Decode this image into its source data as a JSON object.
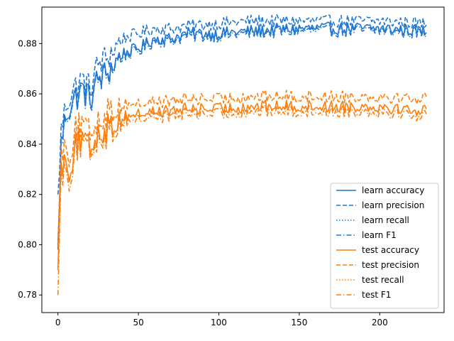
{
  "chart_data": {
    "type": "line",
    "title": "",
    "xlabel": "",
    "ylabel": "",
    "xlim": [
      -10,
      240
    ],
    "ylim": [
      0.773,
      0.8945
    ],
    "xticks": [
      0,
      50,
      100,
      150,
      200
    ],
    "yticks": [
      0.78,
      0.8,
      0.82,
      0.84,
      0.86,
      0.88
    ],
    "ytick_labels": [
      "0.78",
      "0.80",
      "0.82",
      "0.84",
      "0.86",
      "0.88"
    ],
    "xtick_labels": [
      "0",
      "50",
      "100",
      "150",
      "200"
    ],
    "grid": false,
    "legend_position": "lower-right",
    "colors": {
      "learn": "#1f77d4",
      "test": "#ff7f0e"
    },
    "series": [
      {
        "name": "learn accuracy",
        "group": "learn",
        "style": "solid",
        "points": [
          [
            0,
            0.8
          ],
          [
            2,
            0.84
          ],
          [
            5,
            0.852
          ],
          [
            10,
            0.858
          ],
          [
            15,
            0.862
          ],
          [
            20,
            0.858
          ],
          [
            25,
            0.866
          ],
          [
            30,
            0.868
          ],
          [
            35,
            0.872
          ],
          [
            40,
            0.876
          ],
          [
            50,
            0.878
          ],
          [
            60,
            0.882
          ],
          [
            70,
            0.882
          ],
          [
            80,
            0.884
          ],
          [
            100,
            0.884
          ],
          [
            120,
            0.885
          ],
          [
            150,
            0.886
          ],
          [
            180,
            0.886
          ],
          [
            200,
            0.886
          ],
          [
            230,
            0.885
          ]
        ]
      },
      {
        "name": "learn precision",
        "group": "learn",
        "style": "dashed",
        "points": [
          [
            0,
            0.82
          ],
          [
            2,
            0.845
          ],
          [
            5,
            0.856
          ],
          [
            10,
            0.862
          ],
          [
            15,
            0.866
          ],
          [
            20,
            0.862
          ],
          [
            25,
            0.872
          ],
          [
            30,
            0.874
          ],
          [
            35,
            0.878
          ],
          [
            40,
            0.882
          ],
          [
            50,
            0.884
          ],
          [
            60,
            0.886
          ],
          [
            70,
            0.886
          ],
          [
            80,
            0.887
          ],
          [
            100,
            0.888
          ],
          [
            120,
            0.889
          ],
          [
            150,
            0.889
          ],
          [
            180,
            0.889
          ],
          [
            200,
            0.889
          ],
          [
            230,
            0.888
          ]
        ]
      },
      {
        "name": "learn recall",
        "group": "learn",
        "style": "dotted",
        "points": [
          [
            0,
            0.8
          ],
          [
            2,
            0.84
          ],
          [
            5,
            0.852
          ],
          [
            10,
            0.858
          ],
          [
            15,
            0.862
          ],
          [
            20,
            0.858
          ],
          [
            25,
            0.866
          ],
          [
            30,
            0.868
          ],
          [
            35,
            0.872
          ],
          [
            40,
            0.876
          ],
          [
            50,
            0.878
          ],
          [
            60,
            0.882
          ],
          [
            70,
            0.882
          ],
          [
            80,
            0.884
          ],
          [
            100,
            0.884
          ],
          [
            120,
            0.885
          ],
          [
            150,
            0.886
          ],
          [
            180,
            0.886
          ],
          [
            200,
            0.886
          ],
          [
            230,
            0.885
          ]
        ]
      },
      {
        "name": "learn F1",
        "group": "learn",
        "style": "dashdot",
        "points": [
          [
            0,
            0.798
          ],
          [
            2,
            0.838
          ],
          [
            5,
            0.851
          ],
          [
            10,
            0.857
          ],
          [
            15,
            0.861
          ],
          [
            20,
            0.857
          ],
          [
            25,
            0.865
          ],
          [
            30,
            0.867
          ],
          [
            35,
            0.871
          ],
          [
            40,
            0.875
          ],
          [
            50,
            0.877
          ],
          [
            60,
            0.881
          ],
          [
            70,
            0.881
          ],
          [
            80,
            0.883
          ],
          [
            100,
            0.883
          ],
          [
            120,
            0.884
          ],
          [
            150,
            0.885
          ],
          [
            180,
            0.885
          ],
          [
            200,
            0.885
          ],
          [
            230,
            0.884
          ]
        ]
      },
      {
        "name": "test accuracy",
        "group": "test",
        "style": "solid",
        "points": [
          [
            0,
            0.79
          ],
          [
            2,
            0.83
          ],
          [
            5,
            0.836
          ],
          [
            8,
            0.828
          ],
          [
            10,
            0.84
          ],
          [
            15,
            0.841
          ],
          [
            20,
            0.838
          ],
          [
            25,
            0.845
          ],
          [
            30,
            0.846
          ],
          [
            35,
            0.848
          ],
          [
            40,
            0.851
          ],
          [
            50,
            0.852
          ],
          [
            60,
            0.853
          ],
          [
            70,
            0.853
          ],
          [
            80,
            0.854
          ],
          [
            100,
            0.854
          ],
          [
            120,
            0.855
          ],
          [
            150,
            0.855
          ],
          [
            180,
            0.855
          ],
          [
            200,
            0.855
          ],
          [
            230,
            0.853
          ]
        ]
      },
      {
        "name": "test precision",
        "group": "test",
        "style": "dashed",
        "points": [
          [
            0,
            0.8
          ],
          [
            2,
            0.836
          ],
          [
            5,
            0.842
          ],
          [
            8,
            0.834
          ],
          [
            10,
            0.846
          ],
          [
            15,
            0.847
          ],
          [
            20,
            0.844
          ],
          [
            25,
            0.85
          ],
          [
            30,
            0.852
          ],
          [
            35,
            0.854
          ],
          [
            40,
            0.856
          ],
          [
            50,
            0.856
          ],
          [
            60,
            0.857
          ],
          [
            70,
            0.857
          ],
          [
            80,
            0.858
          ],
          [
            100,
            0.858
          ],
          [
            120,
            0.859
          ],
          [
            150,
            0.859
          ],
          [
            180,
            0.859
          ],
          [
            200,
            0.859
          ],
          [
            230,
            0.858
          ]
        ]
      },
      {
        "name": "test recall",
        "group": "test",
        "style": "dotted",
        "points": [
          [
            0,
            0.79
          ],
          [
            2,
            0.83
          ],
          [
            5,
            0.836
          ],
          [
            8,
            0.828
          ],
          [
            10,
            0.84
          ],
          [
            15,
            0.841
          ],
          [
            20,
            0.838
          ],
          [
            25,
            0.845
          ],
          [
            30,
            0.846
          ],
          [
            35,
            0.848
          ],
          [
            40,
            0.851
          ],
          [
            50,
            0.852
          ],
          [
            60,
            0.853
          ],
          [
            70,
            0.853
          ],
          [
            80,
            0.854
          ],
          [
            100,
            0.854
          ],
          [
            120,
            0.855
          ],
          [
            150,
            0.855
          ],
          [
            180,
            0.855
          ],
          [
            200,
            0.855
          ],
          [
            230,
            0.853
          ]
        ]
      },
      {
        "name": "test F1",
        "group": "test",
        "style": "dashdot",
        "points": [
          [
            0,
            0.78
          ],
          [
            2,
            0.826
          ],
          [
            5,
            0.833
          ],
          [
            8,
            0.824
          ],
          [
            10,
            0.838
          ],
          [
            15,
            0.839
          ],
          [
            20,
            0.836
          ],
          [
            25,
            0.843
          ],
          [
            30,
            0.844
          ],
          [
            35,
            0.846
          ],
          [
            40,
            0.849
          ],
          [
            50,
            0.85
          ],
          [
            60,
            0.851
          ],
          [
            70,
            0.851
          ],
          [
            80,
            0.852
          ],
          [
            100,
            0.852
          ],
          [
            120,
            0.853
          ],
          [
            150,
            0.853
          ],
          [
            180,
            0.853
          ],
          [
            200,
            0.853
          ],
          [
            230,
            0.851
          ]
        ]
      }
    ]
  }
}
